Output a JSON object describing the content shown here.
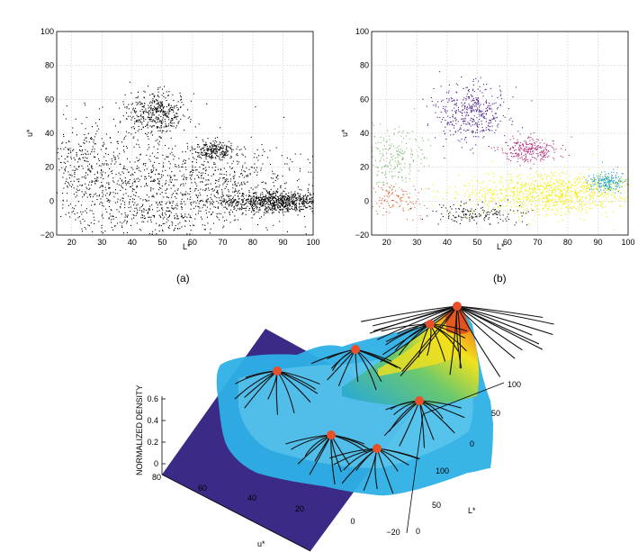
{
  "chart_data": [
    {
      "type": "scatter",
      "panel": "a",
      "caption": "(a)",
      "xlabel": "L*",
      "ylabel": "u*",
      "xlim": [
        15,
        100
      ],
      "ylim": [
        -20,
        100
      ],
      "xticks": [
        "20",
        "30",
        "40",
        "50",
        "60",
        "70",
        "80",
        "90",
        "100"
      ],
      "yticks": [
        "-20",
        "0",
        "20",
        "40",
        "60",
        "80",
        "100"
      ],
      "grid": true,
      "point_color": "#000000",
      "clusters": [
        {
          "center": [
            48,
            52
          ],
          "spread": [
            5,
            6
          ],
          "count": 420
        },
        {
          "center": [
            67,
            30
          ],
          "spread": [
            3.5,
            3
          ],
          "count": 220
        },
        {
          "center": [
            88,
            0
          ],
          "spread": [
            10,
            3
          ],
          "count": 900
        },
        {
          "center": [
            65,
            10
          ],
          "spread": [
            18,
            12
          ],
          "count": 700
        },
        {
          "center": [
            35,
            15
          ],
          "spread": [
            15,
            15
          ],
          "count": 550
        },
        {
          "center": [
            22,
            25
          ],
          "spread": [
            6,
            12
          ],
          "count": 150
        },
        {
          "center": [
            45,
            -10
          ],
          "spread": [
            15,
            5
          ],
          "count": 200
        }
      ]
    },
    {
      "type": "scatter",
      "panel": "b",
      "caption": "(b)",
      "xlabel": "L*",
      "ylabel": "u*",
      "xlim": [
        15,
        100
      ],
      "ylim": [
        -20,
        100
      ],
      "xticks": [
        "20",
        "30",
        "40",
        "50",
        "60",
        "70",
        "80",
        "90",
        "100"
      ],
      "yticks": [
        "-20",
        "0",
        "20",
        "40",
        "60",
        "80",
        "100"
      ],
      "grid": true,
      "clusters": [
        {
          "color": "#4b1a8c",
          "center": [
            48,
            52
          ],
          "spread": [
            6,
            8
          ],
          "count": 420
        },
        {
          "color": "#b0287a",
          "center": [
            67,
            30
          ],
          "spread": [
            5,
            4
          ],
          "count": 260
        },
        {
          "color": "#f0ee10",
          "center": [
            75,
            5
          ],
          "spread": [
            15,
            6
          ],
          "count": 1100
        },
        {
          "color": "#7dbb6e",
          "center": [
            22,
            25
          ],
          "spread": [
            5,
            9
          ],
          "count": 220
        },
        {
          "color": "#e0673a",
          "center": [
            22,
            2
          ],
          "spread": [
            5,
            5
          ],
          "count": 120
        },
        {
          "color": "#1aa3c3",
          "center": [
            93,
            12
          ],
          "spread": [
            3,
            3
          ],
          "count": 180
        },
        {
          "color": "#111111",
          "center": [
            50,
            -7
          ],
          "spread": [
            8,
            3
          ],
          "count": 160
        }
      ]
    },
    {
      "type": "surface",
      "panel": "c",
      "zlabel": "NORMALIZED DENSITY",
      "xlabel": "u*",
      "ylabel": "L*",
      "zticks": [
        "0",
        "0.2",
        "0.4",
        "0.6"
      ],
      "uticks": [
        "80",
        "60",
        "40",
        "20",
        "0",
        "-20"
      ],
      "lticks": [
        "0",
        "50",
        "100"
      ],
      "rticks": [
        "100",
        "50",
        "0"
      ],
      "peak_color": "#e8502a",
      "peaks": [
        {
          "u": 48,
          "L": 52,
          "density": 0.45
        },
        {
          "u": 30,
          "L": 67,
          "density": 0.55
        },
        {
          "u": 15,
          "L": 85,
          "density": 0.7
        },
        {
          "u": 2,
          "L": 97,
          "density": 0.85
        },
        {
          "u": 15,
          "L": 25,
          "density": 0.3
        },
        {
          "u": 5,
          "L": 60,
          "density": 0.15
        },
        {
          "u": -10,
          "L": 45,
          "density": 0.1
        }
      ]
    }
  ]
}
